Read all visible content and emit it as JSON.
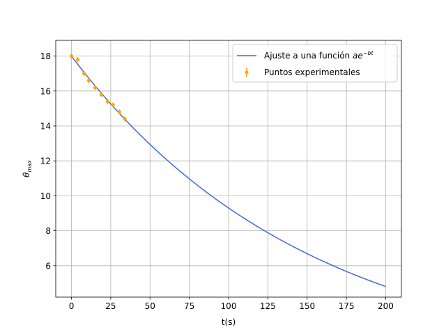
{
  "chart_data": {
    "type": "line",
    "title": "",
    "xlabel": "t(s)",
    "ylabel_base": "θ",
    "ylabel_sub": "max",
    "xlim": [
      -10,
      210
    ],
    "ylim": [
      4.2,
      18.9
    ],
    "xticks": [
      0,
      25,
      50,
      75,
      100,
      125,
      150,
      175,
      200
    ],
    "yticks": [
      6,
      8,
      10,
      12,
      14,
      16,
      18
    ],
    "grid": true,
    "legend_position": "top-right",
    "colors": {
      "fit": "#4169e1",
      "points": "#ffa500"
    },
    "series": [
      {
        "name_prefix": "Ajuste a una función ",
        "name_math_base": "ae",
        "name_math_sup": "−bt",
        "kind": "line",
        "a": 18.0,
        "b": 0.0066,
        "x": [
          0,
          10,
          20,
          30,
          40,
          50,
          60,
          70,
          80,
          90,
          100,
          110,
          120,
          130,
          140,
          150,
          160,
          170,
          180,
          190,
          200
        ],
        "y": [
          18.0,
          16.85,
          15.77,
          14.77,
          13.82,
          12.94,
          12.12,
          11.34,
          10.62,
          9.94,
          9.31,
          8.71,
          8.16,
          7.64,
          7.15,
          6.69,
          6.26,
          5.86,
          5.49,
          5.14,
          4.81
        ]
      },
      {
        "name": "Puntos experimentales",
        "kind": "errorbar",
        "x": [
          0,
          4,
          8,
          11,
          15,
          19,
          23,
          26.5,
          30.5,
          34
        ],
        "y": [
          18.0,
          17.8,
          17.0,
          16.6,
          16.2,
          15.8,
          15.4,
          15.2,
          14.8,
          14.4
        ],
        "yerr": [
          0.15,
          0.15,
          0.15,
          0.15,
          0.15,
          0.15,
          0.15,
          0.15,
          0.15,
          0.15
        ]
      }
    ]
  }
}
